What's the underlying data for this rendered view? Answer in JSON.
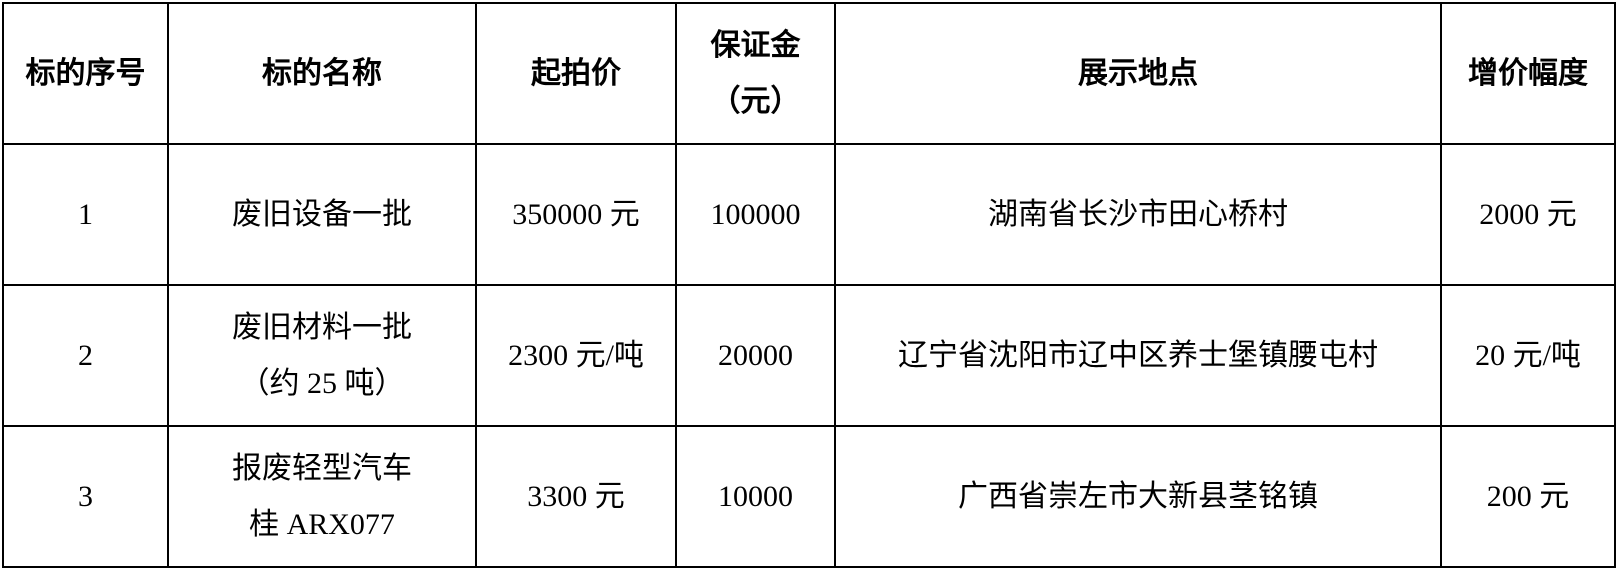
{
  "headers": [
    "标的序号",
    "标的名称",
    "起拍价",
    "保证金（元）",
    "展示地点",
    "增价幅度"
  ],
  "header_lines": {
    "deposit_line1": "保证金",
    "deposit_line2": "（元）"
  },
  "rows": [
    {
      "no": "1",
      "name_line1": "废旧设备一批",
      "name_line2": "",
      "start_price": "350000 元",
      "deposit": "100000",
      "location": "湖南省长沙市田心桥村",
      "increment": "2000 元"
    },
    {
      "no": "2",
      "name_line1": "废旧材料一批",
      "name_line2": "（约 25 吨）",
      "start_price": "2300 元/吨",
      "deposit": "20000",
      "location": "辽宁省沈阳市辽中区养士堡镇腰屯村",
      "increment": "20 元/吨"
    },
    {
      "no": "3",
      "name_line1": "报废轻型汽车",
      "name_line2": "桂 ARX077",
      "start_price": "3300 元",
      "deposit": "10000",
      "location": "广西省崇左市大新县茎铭镇",
      "increment": "200 元"
    }
  ]
}
